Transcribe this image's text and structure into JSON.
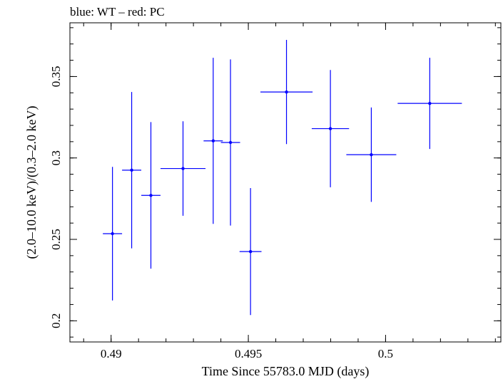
{
  "chart_data": {
    "type": "scatter",
    "title": "blue: WT – red: PC",
    "xlabel": "Time Since 55783.0 MJD (days)",
    "ylabel": "(2.0–10.0 keV)/(0.3–2.0 keV)",
    "xlim": [
      0.4885,
      0.5042
    ],
    "ylim": [
      0.187,
      0.383
    ],
    "x_ticks": [
      0.49,
      0.495,
      0.5
    ],
    "x_tick_labels": [
      "0.49",
      "0.495",
      "0.5"
    ],
    "y_ticks": [
      0.2,
      0.25,
      0.3,
      0.35
    ],
    "y_tick_labels": [
      "0.2",
      "0.25",
      "0.3",
      "0.35"
    ],
    "x_minor_step": 0.001,
    "y_minor_step": 0.01,
    "grid": false,
    "series": [
      {
        "name": "WT",
        "color": "#0000ff",
        "points": [
          {
            "x": 0.49005,
            "xerr": 0.00035,
            "y": 0.2535,
            "yerr_lo": 0.041,
            "yerr_hi": 0.041
          },
          {
            "x": 0.49075,
            "xerr": 0.00035,
            "y": 0.2925,
            "yerr_lo": 0.048,
            "yerr_hi": 0.048
          },
          {
            "x": 0.49145,
            "xerr": 0.00035,
            "y": 0.277,
            "yerr_lo": 0.045,
            "yerr_hi": 0.045
          },
          {
            "x": 0.49262,
            "xerr": 0.00082,
            "y": 0.2935,
            "yerr_lo": 0.029,
            "yerr_hi": 0.029
          },
          {
            "x": 0.49372,
            "xerr": 0.00035,
            "y": 0.3105,
            "yerr_lo": 0.051,
            "yerr_hi": 0.051
          },
          {
            "x": 0.49435,
            "xerr": 0.00035,
            "y": 0.3095,
            "yerr_lo": 0.051,
            "yerr_hi": 0.051
          },
          {
            "x": 0.49508,
            "xerr": 0.0004,
            "y": 0.2425,
            "yerr_lo": 0.039,
            "yerr_hi": 0.039
          },
          {
            "x": 0.49639,
            "xerr": 0.00095,
            "y": 0.3405,
            "yerr_lo": 0.032,
            "yerr_hi": 0.032
          },
          {
            "x": 0.49799,
            "xerr": 0.00068,
            "y": 0.318,
            "yerr_lo": 0.036,
            "yerr_hi": 0.036
          },
          {
            "x": 0.49948,
            "xerr": 0.00091,
            "y": 0.302,
            "yerr_lo": 0.029,
            "yerr_hi": 0.029
          },
          {
            "x": 0.50161,
            "xerr": 0.00117,
            "y": 0.3335,
            "yerr_lo": 0.028,
            "yerr_hi": 0.028
          }
        ]
      }
    ]
  }
}
